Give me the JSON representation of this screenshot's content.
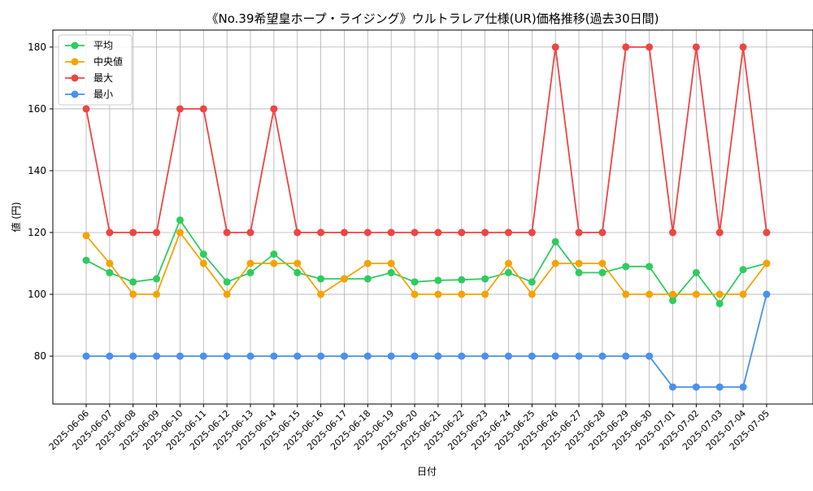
{
  "chart_data": {
    "type": "line",
    "title": "《No.39希望皇ホープ・ライジング》ウルトラレア仕様(UR)価格推移(過去30日間)",
    "xlabel": "日付",
    "ylabel": "値 (円)",
    "ylim": [
      64.5,
      185.5
    ],
    "yticks": [
      80,
      100,
      120,
      140,
      160,
      180
    ],
    "grid": true,
    "legend_position": "top-left",
    "categories": [
      "2025-06-06",
      "2025-06-07",
      "2025-06-08",
      "2025-06-09",
      "2025-06-10",
      "2025-06-11",
      "2025-06-12",
      "2025-06-13",
      "2025-06-14",
      "2025-06-15",
      "2025-06-16",
      "2025-06-17",
      "2025-06-18",
      "2025-06-19",
      "2025-06-20",
      "2025-06-21",
      "2025-06-22",
      "2025-06-23",
      "2025-06-24",
      "2025-06-25",
      "2025-06-26",
      "2025-06-27",
      "2025-06-28",
      "2025-06-29",
      "2025-06-30",
      "2025-07-01",
      "2025-07-02",
      "2025-07-03",
      "2025-07-04",
      "2025-07-05"
    ],
    "series": [
      {
        "name": "平均",
        "color": "#2ecc5f",
        "values": [
          111,
          107,
          104,
          105,
          124,
          113,
          104,
          107,
          113,
          107,
          105,
          105,
          105,
          107,
          104,
          104.5,
          104.7,
          105,
          107,
          104,
          117,
          107,
          107,
          109,
          109,
          98,
          107,
          97,
          108,
          110
        ]
      },
      {
        "name": "中央値",
        "color": "#f5a300",
        "values": [
          119,
          110,
          100,
          100,
          120,
          110,
          100,
          110,
          110,
          110,
          100,
          105,
          110,
          110,
          100,
          100,
          100,
          100,
          110,
          100,
          110,
          110,
          110,
          100,
          100,
          100,
          100,
          100,
          100,
          110
        ]
      },
      {
        "name": "最大",
        "color": "#ef4444",
        "values": [
          160,
          120,
          120,
          120,
          160,
          160,
          120,
          120,
          160,
          120,
          120,
          120,
          120,
          120,
          120,
          120,
          120,
          120,
          120,
          120,
          180,
          120,
          120,
          180,
          180,
          120,
          180,
          120,
          180,
          120
        ]
      },
      {
        "name": "最小",
        "color": "#4a90f0",
        "values": [
          80,
          80,
          80,
          80,
          80,
          80,
          80,
          80,
          80,
          80,
          80,
          80,
          80,
          80,
          80,
          80,
          80,
          80,
          80,
          80,
          80,
          80,
          80,
          80,
          80,
          70,
          70,
          70,
          70,
          100
        ]
      }
    ]
  }
}
